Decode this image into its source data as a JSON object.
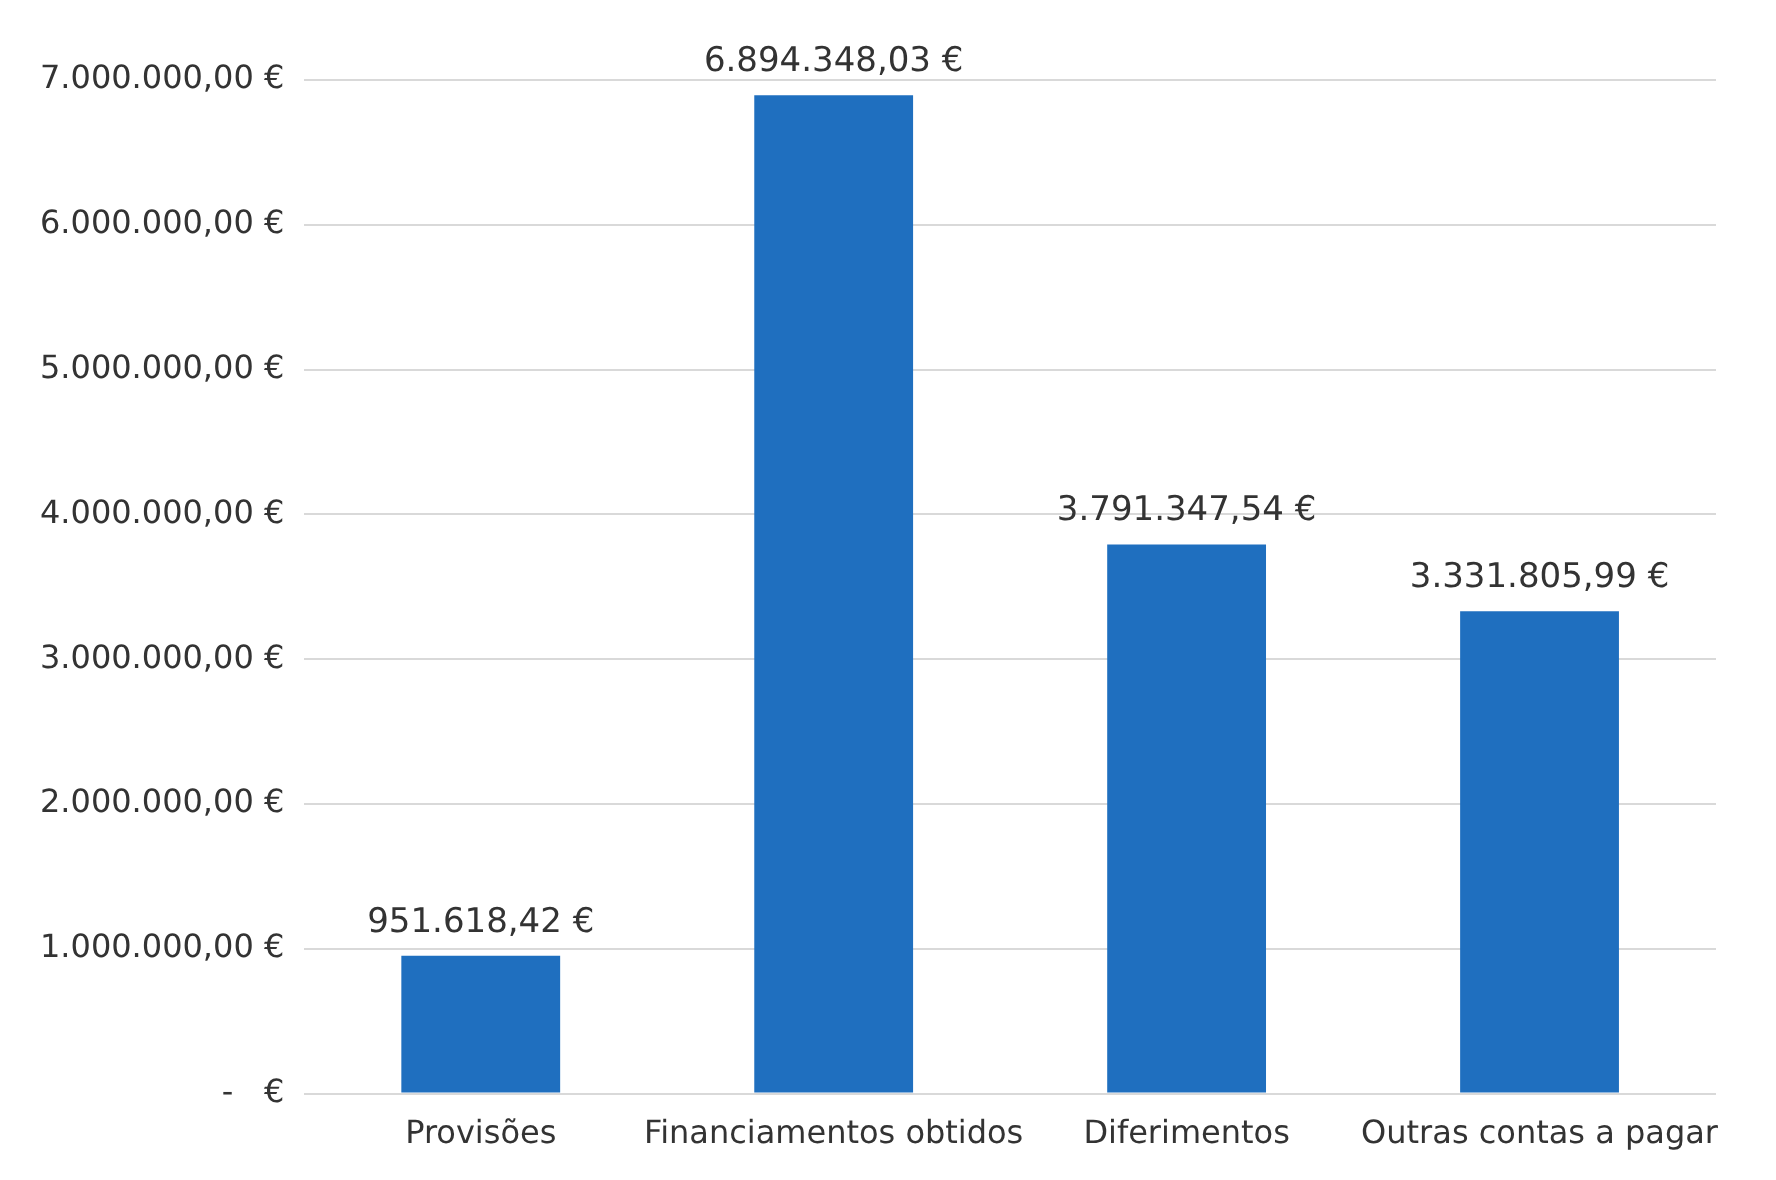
{
  "chart_data": {
    "type": "bar",
    "categories": [
      "Provisões",
      "Financiamentos obtidos",
      "Diferimentos",
      "Outras contas a pagar"
    ],
    "values": [
      951618.42,
      6894348.03,
      3791347.54,
      3331805.99
    ],
    "value_labels": [
      "951.618,42 €",
      "6.894.348,03 €",
      "3.791.347,54 €",
      "3.331.805,99 €"
    ],
    "color": "#1f6fbf",
    "ylim": [
      0,
      7000000
    ],
    "yticks": [
      {
        "value": 0,
        "label": "-   €"
      },
      {
        "value": 1000000,
        "label": "1.000.000,00 €"
      },
      {
        "value": 2000000,
        "label": "2.000.000,00 €"
      },
      {
        "value": 3000000,
        "label": "3.000.000,00 €"
      },
      {
        "value": 4000000,
        "label": "4.000.000,00 €"
      },
      {
        "value": 5000000,
        "label": "5.000.000,00 €"
      },
      {
        "value": 6000000,
        "label": "6.000.000,00 €"
      },
      {
        "value": 7000000,
        "label": "7.000.000,00 €"
      }
    ],
    "grid": "y"
  }
}
